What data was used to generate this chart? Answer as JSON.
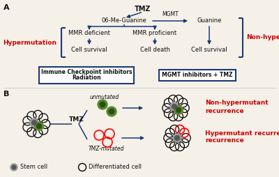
{
  "bg_color": "#f5f0e8",
  "arrow_color": "#1a3a7a",
  "text_color": "#111111",
  "red_color": "#cc0000",
  "box_color": "#1a3a7a",
  "panel_a_label": "A",
  "panel_b_label": "B",
  "tmz_text": "TMZ",
  "o6_text": "06-Me-Guanine",
  "mgmt_text": "MGMT",
  "guanine_text": "Guanine",
  "mmr_def_text": "MMR deficient",
  "mmr_prof_text": "MMR proficient",
  "cell_surv1_text": "Cell survival",
  "cell_death_text": "Cell death",
  "cell_surv2_text": "Cell survival",
  "hyper_text": "Hypermutation",
  "non_hyper_text": "Non-hypermutation",
  "box1_text1": "Immune Checkpoint inhibitors",
  "box1_text2": "Radiation",
  "box2_text": "MGMT inhibitors + TMZ",
  "unmutated_text": "unmutated",
  "tmz_mutated_text": "TMZ-mutated",
  "tmz_b_text": "TMZ",
  "non_hyper_rec_text1": "Non-hypermutant",
  "non_hyper_rec_text2": "recurrence",
  "hyper_rec_text1": "Hypermutant recurrence",
  "stem_text": "Stem cell",
  "diff_text": "Differentiated cell",
  "gray_outer": "#999999",
  "gray_inner": "#555555",
  "green_outer": "#5a8a30",
  "green_inner": "#2a5010"
}
